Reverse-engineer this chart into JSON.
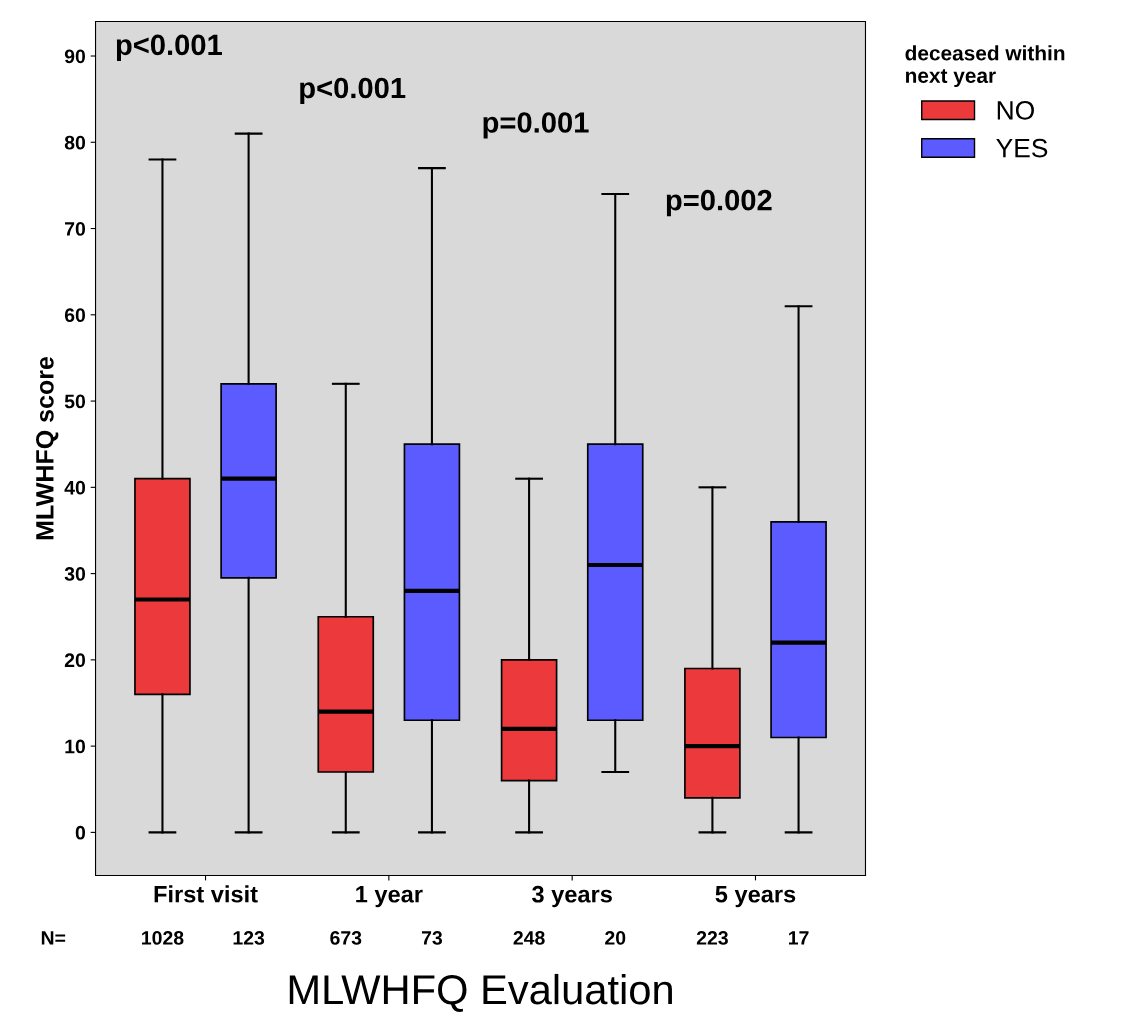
{
  "chart_data": {
    "type": "box",
    "xlabel": "MLWHFQ Evaluation",
    "ylabel": "MLWHFQ score",
    "legend_title": "deceased within\nnext year",
    "legend": "right",
    "grid": false,
    "categories": [
      "First visit",
      "1 year",
      "3 years",
      "5 years"
    ],
    "ylim": [
      -5,
      94
    ],
    "yticks": [
      0,
      10,
      20,
      30,
      40,
      50,
      60,
      70,
      80,
      90
    ],
    "series": [
      {
        "name": "NO",
        "color": "#ec3a3c",
        "boxes": [
          {
            "low": 0,
            "q1": 16,
            "median": 27,
            "q3": 41,
            "high": 78
          },
          {
            "low": 0,
            "q1": 7,
            "median": 14,
            "q3": 25,
            "high": 52
          },
          {
            "low": 0,
            "q1": 6,
            "median": 12,
            "q3": 20,
            "high": 41
          },
          {
            "low": 0,
            "q1": 4,
            "median": 10,
            "q3": 19,
            "high": 40
          }
        ]
      },
      {
        "name": "YES",
        "color": "#5b5bff",
        "boxes": [
          {
            "low": 0,
            "q1": 29.5,
            "median": 41,
            "q3": 52,
            "high": 81
          },
          {
            "low": 0,
            "q1": 13,
            "median": 28,
            "q3": 45,
            "high": 77
          },
          {
            "low": 7,
            "q1": 13,
            "median": 31,
            "q3": 45,
            "high": 74
          },
          {
            "low": 0,
            "q1": 11,
            "median": 22,
            "q3": 36,
            "high": 61
          }
        ]
      }
    ],
    "annotations": [
      "p<0.001",
      "p<0.001",
      "p=0.001",
      "p=0.002",
      "N=",
      "1028",
      "123",
      "673",
      "73",
      "248",
      "20",
      "223",
      "17"
    ]
  }
}
